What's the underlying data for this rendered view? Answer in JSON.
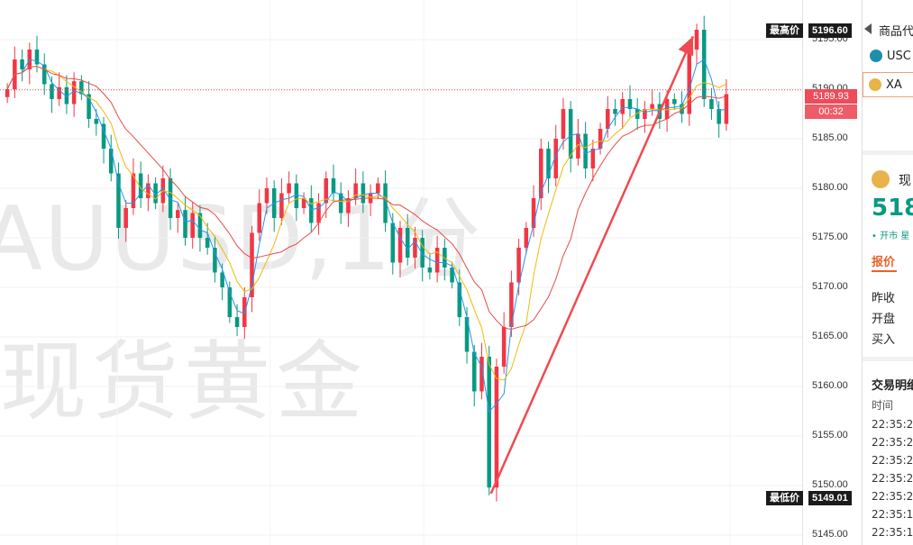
{
  "watermark": {
    "line1": "AUUSD,1分",
    "line2": "现货黄金"
  },
  "colors": {
    "up": "#f23645",
    "down": "#089981",
    "ma_fast": "#2196f3",
    "ma_mid": "#f0b90b",
    "ma_slow": "#e84a4a",
    "arrow": "#f04a50",
    "current_line": "#e84a4a"
  },
  "axis": {
    "ticks": [
      "5195.00",
      "5190.00",
      "5185.00",
      "5180.00",
      "5175.00",
      "5170.00",
      "5165.00",
      "5160.00",
      "5155.00",
      "5150.00",
      "5145.00"
    ],
    "tick_values": [
      5195,
      5190,
      5185,
      5180,
      5175,
      5170,
      5165,
      5160,
      5155,
      5150,
      5145
    ]
  },
  "tags": {
    "high_label": "最高价",
    "high_value": "5196.60",
    "low_label": "最低价",
    "low_value": "5149.01",
    "current_price": "5189.93",
    "countdown": "00:32"
  },
  "sidebar": {
    "header": "商品代",
    "item1": "USC",
    "item2": "XA",
    "quote_label": "现",
    "quote_value": "518",
    "status": "• 开市 星",
    "tab_label": "报价",
    "row1": "昨收",
    "row2": "开盘",
    "row3": "买入",
    "trades_title": "交易明细",
    "time_header": "时间",
    "times": [
      "22:35:2",
      "22:35:2",
      "22:35:2",
      "22:35:2",
      "22:35:2",
      "22:35:1",
      "22:35:1"
    ]
  },
  "chart_data": {
    "type": "candlestick",
    "y_range": [
      5144,
      5199
    ],
    "high": 5196.6,
    "low": 5149.01,
    "current": 5189.93,
    "closes": [
      5190.0,
      5193.0,
      5192.0,
      5194.0,
      5192.5,
      5190.5,
      5189.0,
      5190.2,
      5188.5,
      5190.8,
      5189.5,
      5187.0,
      5186.5,
      5184.0,
      5181.5,
      5176.0,
      5178.0,
      5181.5,
      5179.0,
      5180.5,
      5178.5,
      5181.0,
      5177.0,
      5177.8,
      5175.0,
      5177.5,
      5175.0,
      5174.0,
      5171.5,
      5170.0,
      5167.0,
      5166.0,
      5169.0,
      5175.5,
      5178.5,
      5180.0,
      5177.0,
      5179.5,
      5180.5,
      5178.0,
      5179.0,
      5176.5,
      5178.5,
      5181.0,
      5179.5,
      5177.5,
      5179.0,
      5180.5,
      5178.5,
      5179.5,
      5180.5,
      5176.5,
      5172.5,
      5176.0,
      5173.0,
      5175.0,
      5172.0,
      5171.5,
      5174.0,
      5172.0,
      5170.5,
      5167.0,
      5163.5,
      5159.5,
      5163.0,
      5149.8,
      5162.0,
      5166.0,
      5170.5,
      5174.0,
      5176.0,
      5179.0,
      5184.0,
      5181.0,
      5185.0,
      5188.0,
      5183.0,
      5185.5,
      5182.0,
      5184.0,
      5186.0,
      5188.0,
      5187.5,
      5189.0,
      5188.0,
      5187.0,
      5188.0,
      5188.5,
      5187.0,
      5189.0,
      5188.5,
      5187.5,
      5194.0,
      5196.0,
      5189.0,
      5188.0,
      5186.5,
      5189.5
    ]
  }
}
